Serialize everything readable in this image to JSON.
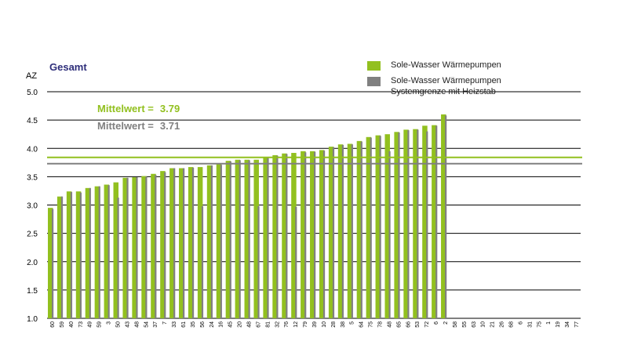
{
  "chart_data": {
    "type": "bar",
    "title": "Gesamt",
    "ylabel": "AZ",
    "ylim": [
      1.0,
      5.0
    ],
    "yticks": [
      "1.0",
      "1.5",
      "2.0",
      "2.5",
      "3.0",
      "3.5",
      "4.0",
      "4.5",
      "5.0"
    ],
    "grid": true,
    "legend_position": "top-right",
    "categories": [
      "60",
      "59",
      "40",
      "73",
      "49",
      "59",
      "3",
      "50",
      "43",
      "48",
      "54",
      "37",
      "7",
      "33",
      "61",
      "35",
      "56",
      "24",
      "16",
      "45",
      "20",
      "48",
      "67",
      "81",
      "32",
      "76",
      "12",
      "79",
      "39",
      "10",
      "28",
      "38",
      "5",
      "64",
      "75",
      "78",
      "48",
      "65",
      "66",
      "53",
      "72",
      "6",
      "2",
      "58",
      "55",
      "63",
      "10",
      "21",
      "26",
      "68",
      "6",
      "31",
      "75",
      "1",
      "19",
      "34",
      "77"
    ],
    "series": [
      {
        "name": "Sole-Wasser Wärmepumpen",
        "color": "#92c01f",
        "values": [
          2.95,
          3.15,
          3.24,
          3.24,
          3.3,
          3.33,
          3.36,
          3.4,
          3.48,
          3.49,
          3.51,
          3.55,
          3.6,
          3.65,
          3.65,
          3.67,
          3.67,
          3.7,
          3.72,
          3.78,
          3.8,
          3.8,
          3.8,
          3.85,
          3.88,
          3.91,
          3.92,
          3.95,
          3.95,
          3.97,
          4.03,
          4.07,
          4.08,
          4.13,
          4.2,
          4.23,
          4.25,
          4.29,
          4.33,
          4.34,
          4.4,
          4.41,
          4.6,
          null,
          null,
          null,
          null,
          null,
          null,
          null,
          null,
          null,
          null,
          null,
          null,
          null,
          null
        ]
      },
      {
        "name": "Sole-Wasser Wärmepumpen Systemgrenze mit Heizstab",
        "color": "#808080",
        "values": [
          2.93,
          3.15,
          3.23,
          3.22,
          3.3,
          3.33,
          3.35,
          3.13,
          3.48,
          3.49,
          3.5,
          3.53,
          3.58,
          3.65,
          3.65,
          3.66,
          2.98,
          3.7,
          3.71,
          3.77,
          3.79,
          3.79,
          2.98,
          3.84,
          3.87,
          3.9,
          2.97,
          3.93,
          3.94,
          3.96,
          4.02,
          4.06,
          4.07,
          4.12,
          4.19,
          4.22,
          3.95,
          4.28,
          4.32,
          4.33,
          4.3,
          4.4,
          4.58,
          null,
          null,
          null,
          null,
          null,
          null,
          null,
          null,
          null,
          null,
          null,
          null,
          null,
          null
        ]
      }
    ],
    "annotations": [
      {
        "label": "Mittelwert =",
        "value": "3.79",
        "y": 3.84,
        "color": "#92c01f"
      },
      {
        "label": "Mittelwert =",
        "value": "3.71",
        "y": 3.73,
        "color": "#808080"
      }
    ]
  }
}
